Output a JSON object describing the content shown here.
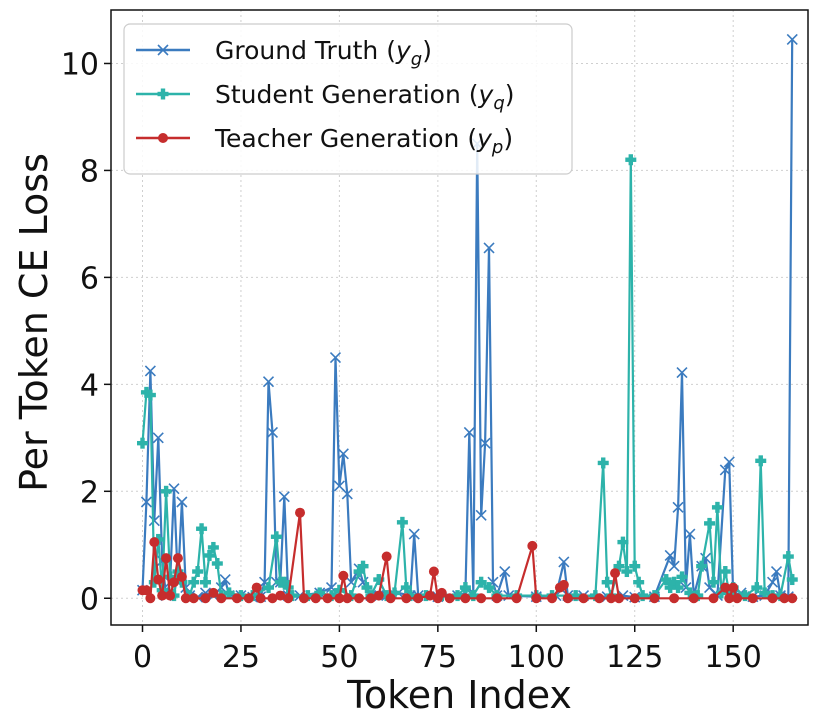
{
  "chart_data": {
    "type": "line",
    "title": "",
    "xlabel": "Token Index",
    "ylabel": "Per Token CE Loss",
    "xlim": [
      -8,
      169
    ],
    "ylim": [
      -0.5,
      11
    ],
    "xticks": [
      "0",
      "25",
      "50",
      "75",
      "100",
      "125",
      "150"
    ],
    "yticks": [
      "0",
      "2",
      "4",
      "6",
      "8",
      "10"
    ],
    "grid": true,
    "legend_position": "top-left",
    "series": [
      {
        "name": "Ground Truth (yg)",
        "legend_base": "Ground Truth (",
        "legend_var": "y",
        "legend_sub": "g",
        "legend_close": ")",
        "color": "#3b7bbf",
        "marker": "x",
        "points": [
          [
            0,
            0.15
          ],
          [
            1,
            1.8
          ],
          [
            2,
            4.25
          ],
          [
            3,
            1.45
          ],
          [
            4,
            3.0
          ],
          [
            5,
            0.7
          ],
          [
            6,
            0.05
          ],
          [
            7,
            0.3
          ],
          [
            8,
            2.05
          ],
          [
            9,
            0.3
          ],
          [
            10,
            1.8
          ],
          [
            11,
            0.2
          ],
          [
            12,
            0.05
          ],
          [
            14,
            0.02
          ],
          [
            16,
            0.1
          ],
          [
            18,
            0.05
          ],
          [
            20,
            0.2
          ],
          [
            21,
            0.35
          ],
          [
            22,
            0.05
          ],
          [
            25,
            0.05
          ],
          [
            28,
            0.02
          ],
          [
            30,
            0.03
          ],
          [
            31,
            0.3
          ],
          [
            32,
            4.05
          ],
          [
            33,
            3.1
          ],
          [
            34,
            0.3
          ],
          [
            35,
            0.3
          ],
          [
            36,
            1.9
          ],
          [
            37,
            0.05
          ],
          [
            40,
            0.05
          ],
          [
            45,
            0.1
          ],
          [
            48,
            0.2
          ],
          [
            49,
            4.5
          ],
          [
            50,
            2.1
          ],
          [
            51,
            2.7
          ],
          [
            52,
            1.95
          ],
          [
            53,
            0.3
          ],
          [
            55,
            0.55
          ],
          [
            56,
            0.3
          ],
          [
            58,
            0.05
          ],
          [
            62,
            0.05
          ],
          [
            65,
            0.1
          ],
          [
            68,
            0.05
          ],
          [
            69,
            1.2
          ],
          [
            70,
            0.05
          ],
          [
            75,
            0.03
          ],
          [
            80,
            0.05
          ],
          [
            82,
            0.1
          ],
          [
            83,
            3.1
          ],
          [
            84,
            0.1
          ],
          [
            85,
            8.5
          ],
          [
            86,
            1.55
          ],
          [
            87,
            2.9
          ],
          [
            88,
            6.55
          ],
          [
            89,
            0.3
          ],
          [
            90,
            0.05
          ],
          [
            92,
            0.5
          ],
          [
            93,
            0.05
          ],
          [
            100,
            0.03
          ],
          [
            105,
            0.05
          ],
          [
            107,
            0.68
          ],
          [
            108,
            0.05
          ],
          [
            112,
            0.05
          ],
          [
            118,
            0.03
          ],
          [
            122,
            0.05
          ],
          [
            125,
            0.02
          ],
          [
            130,
            0.03
          ],
          [
            134,
            0.8
          ],
          [
            135,
            0.6
          ],
          [
            136,
            1.7
          ],
          [
            137,
            4.22
          ],
          [
            138,
            0.2
          ],
          [
            139,
            1.2
          ],
          [
            140,
            0.05
          ],
          [
            142,
            0.6
          ],
          [
            143,
            0.75
          ],
          [
            144,
            0.2
          ],
          [
            146,
            0.05
          ],
          [
            148,
            2.4
          ],
          [
            149,
            2.55
          ],
          [
            150,
            0.05
          ],
          [
            152,
            0.1
          ],
          [
            155,
            0.03
          ],
          [
            158,
            0.05
          ],
          [
            160,
            0.3
          ],
          [
            161,
            0.5
          ],
          [
            162,
            0.05
          ],
          [
            164,
            0.03
          ],
          [
            165,
            10.45
          ]
        ]
      },
      {
        "name": "Student Generation (yq)",
        "legend_base": "Student Generation (",
        "legend_var": "y",
        "legend_sub": "q",
        "legend_close": ")",
        "color": "#2db3aa",
        "marker": "plus",
        "points": [
          [
            0,
            2.9
          ],
          [
            1,
            3.85
          ],
          [
            2,
            3.8
          ],
          [
            3,
            0.3
          ],
          [
            4,
            1.1
          ],
          [
            5,
            0.15
          ],
          [
            6,
            2.0
          ],
          [
            7,
            0.4
          ],
          [
            8,
            0.05
          ],
          [
            9,
            0.5
          ],
          [
            10,
            0.3
          ],
          [
            12,
            0.05
          ],
          [
            13,
            0.3
          ],
          [
            14,
            0.5
          ],
          [
            15,
            1.3
          ],
          [
            16,
            0.3
          ],
          [
            17,
            0.8
          ],
          [
            18,
            0.95
          ],
          [
            19,
            0.65
          ],
          [
            20,
            0.05
          ],
          [
            22,
            0.1
          ],
          [
            25,
            0.05
          ],
          [
            28,
            0.05
          ],
          [
            32,
            0.2
          ],
          [
            34,
            1.15
          ],
          [
            35,
            0.3
          ],
          [
            36,
            0.3
          ],
          [
            37,
            0.2
          ],
          [
            38,
            0.05
          ],
          [
            42,
            0.05
          ],
          [
            45,
            0.1
          ],
          [
            48,
            0.05
          ],
          [
            50,
            0.15
          ],
          [
            53,
            0.05
          ],
          [
            55,
            0.5
          ],
          [
            56,
            0.6
          ],
          [
            57,
            0.2
          ],
          [
            58,
            0.05
          ],
          [
            60,
            0.35
          ],
          [
            62,
            0.05
          ],
          [
            64,
            0.1
          ],
          [
            66,
            1.42
          ],
          [
            67,
            0.2
          ],
          [
            68,
            0.05
          ],
          [
            72,
            0.05
          ],
          [
            76,
            0.05
          ],
          [
            80,
            0.05
          ],
          [
            82,
            0.2
          ],
          [
            84,
            0.05
          ],
          [
            86,
            0.3
          ],
          [
            88,
            0.2
          ],
          [
            90,
            0.05
          ],
          [
            95,
            0.05
          ],
          [
            100,
            0.05
          ],
          [
            104,
            0.05
          ],
          [
            110,
            0.05
          ],
          [
            115,
            0.05
          ],
          [
            117,
            2.53
          ],
          [
            118,
            0.3
          ],
          [
            119,
            0.05
          ],
          [
            121,
            0.6
          ],
          [
            122,
            1.05
          ],
          [
            123,
            0.5
          ],
          [
            124,
            8.2
          ],
          [
            125,
            0.6
          ],
          [
            126,
            0.3
          ],
          [
            127,
            0.05
          ],
          [
            130,
            0.05
          ],
          [
            133,
            0.35
          ],
          [
            134,
            0.2
          ],
          [
            135,
            0.3
          ],
          [
            136,
            0.2
          ],
          [
            137,
            0.4
          ],
          [
            139,
            0.1
          ],
          [
            141,
            0.05
          ],
          [
            142,
            0.6
          ],
          [
            144,
            1.4
          ],
          [
            145,
            0.3
          ],
          [
            146,
            1.7
          ],
          [
            147,
            0.1
          ],
          [
            148,
            0.5
          ],
          [
            149,
            0.1
          ],
          [
            150,
            0.2
          ],
          [
            153,
            0.05
          ],
          [
            156,
            0.2
          ],
          [
            157,
            2.57
          ],
          [
            158,
            0.1
          ],
          [
            160,
            0.05
          ],
          [
            162,
            0.05
          ],
          [
            164,
            0.78
          ],
          [
            165,
            0.35
          ]
        ]
      },
      {
        "name": "Teacher Generation (yp)",
        "legend_base": "Teacher Generation (",
        "legend_var": "y",
        "legend_sub": "p",
        "legend_close": ")",
        "color": "#c62d2d",
        "marker": "circle",
        "points": [
          [
            0,
            0.15
          ],
          [
            1,
            0.15
          ],
          [
            2,
            0.0
          ],
          [
            3,
            1.05
          ],
          [
            4,
            0.35
          ],
          [
            5,
            0.05
          ],
          [
            6,
            0.75
          ],
          [
            7,
            0.05
          ],
          [
            8,
            0.3
          ],
          [
            9,
            0.75
          ],
          [
            10,
            0.4
          ],
          [
            11,
            0.0
          ],
          [
            13,
            0.0
          ],
          [
            16,
            0.0
          ],
          [
            18,
            0.1
          ],
          [
            20,
            0.0
          ],
          [
            24,
            0.0
          ],
          [
            27,
            0.0
          ],
          [
            29,
            0.2
          ],
          [
            30,
            0.0
          ],
          [
            33,
            0.0
          ],
          [
            35,
            0.05
          ],
          [
            37,
            0.0
          ],
          [
            40,
            1.6
          ],
          [
            41,
            0.0
          ],
          [
            44,
            0.0
          ],
          [
            47,
            0.0
          ],
          [
            50,
            0.0
          ],
          [
            51,
            0.42
          ],
          [
            52,
            0.0
          ],
          [
            55,
            0.0
          ],
          [
            58,
            0.0
          ],
          [
            60,
            0.05
          ],
          [
            62,
            0.78
          ],
          [
            63,
            0.0
          ],
          [
            67,
            0.0
          ],
          [
            70,
            0.0
          ],
          [
            73,
            0.05
          ],
          [
            74,
            0.5
          ],
          [
            75,
            0.0
          ],
          [
            76,
            0.1
          ],
          [
            78,
            0.0
          ],
          [
            82,
            0.0
          ],
          [
            86,
            0.0
          ],
          [
            90,
            0.0
          ],
          [
            95,
            0.0
          ],
          [
            99,
            0.98
          ],
          [
            100,
            0.0
          ],
          [
            104,
            0.0
          ],
          [
            106,
            0.2
          ],
          [
            107,
            0.25
          ],
          [
            108,
            0.0
          ],
          [
            112,
            0.0
          ],
          [
            116,
            0.0
          ],
          [
            119,
            0.0
          ],
          [
            120,
            0.47
          ],
          [
            121,
            0.0
          ],
          [
            125,
            0.0
          ],
          [
            130,
            0.0
          ],
          [
            135,
            0.0
          ],
          [
            140,
            0.0
          ],
          [
            145,
            0.0
          ],
          [
            148,
            0.2
          ],
          [
            149,
            0.0
          ],
          [
            150,
            0.2
          ],
          [
            151,
            0.0
          ],
          [
            155,
            0.0
          ],
          [
            160,
            0.0
          ],
          [
            163,
            0.0
          ],
          [
            165,
            0.0
          ]
        ]
      }
    ]
  }
}
